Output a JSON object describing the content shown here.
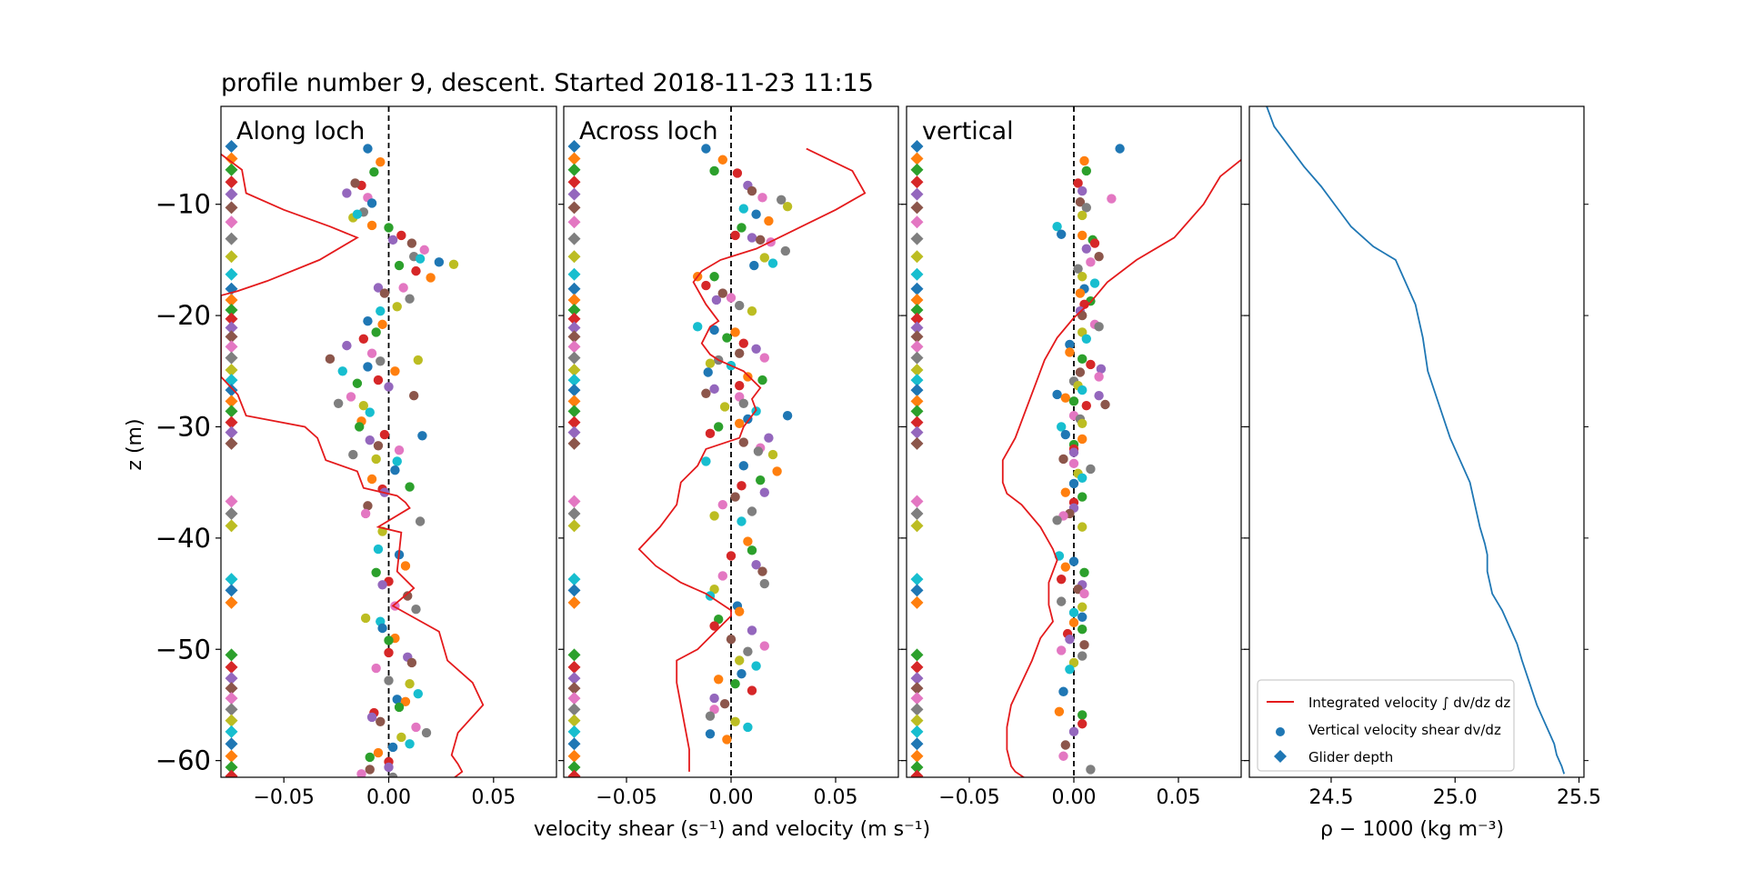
{
  "title": "profile number 9, descent. Started 2018-11-23 11:15",
  "ylabel": "z (m)",
  "shared_xlabel": "velocity shear (s⁻¹) and velocity (m s⁻¹)",
  "colors": {
    "integrated_line": "#e41a1c",
    "density_line": "#1f77b4",
    "zero_line": "#000000",
    "cycle": [
      "#1f77b4",
      "#ff7f0e",
      "#2ca02c",
      "#d62728",
      "#9467bd",
      "#8c564b",
      "#e377c2",
      "#7f7f7f",
      "#bcbd22",
      "#17becf"
    ]
  },
  "legend": {
    "placement": "lower-right",
    "items": [
      {
        "label": "Integrated velocity ∫ dv/dz dz",
        "marker": "line"
      },
      {
        "label": "Vertical velocity shear dv/dz",
        "marker": "circle"
      },
      {
        "label": "Glider depth",
        "marker": "diamond"
      }
    ]
  },
  "chart_data": [
    {
      "type": "scatter",
      "panel_label": "Along loch",
      "xlim": [
        -0.08,
        0.08
      ],
      "ylim": [
        -61.5,
        -1.2
      ],
      "xticks": [
        -0.05,
        0.0,
        0.05
      ],
      "xtick_labels": [
        "−0.05",
        "0.00",
        "0.05"
      ],
      "yticks": [
        -10,
        -20,
        -30,
        -40,
        -50,
        -60
      ],
      "ytick_labels": [
        "−10",
        "−20",
        "−30",
        "−40",
        "−50",
        "−60"
      ],
      "shear_x": [
        -0.01,
        -0.004,
        -0.007,
        -0.013,
        -0.02,
        -0.016,
        -0.01,
        -0.012,
        -0.017,
        -0.015,
        -0.008,
        -0.008,
        0.0,
        0.006,
        0.002,
        0.011,
        0.017,
        0.012,
        0.031,
        0.015,
        0.024,
        0.02,
        0.005,
        0.013,
        -0.005,
        -0.002,
        0.007,
        0.01,
        0.004,
        -0.004,
        -0.01,
        -0.003,
        -0.006,
        -0.012,
        -0.02,
        -0.028,
        -0.008,
        -0.004,
        0.014,
        -0.022,
        -0.01,
        0.003,
        -0.015,
        -0.005,
        0.0,
        0.012,
        -0.018,
        -0.024,
        -0.012,
        -0.009,
        0.016,
        -0.013,
        -0.014,
        -0.002,
        -0.009,
        -0.005,
        0.005,
        -0.017,
        -0.006,
        0.004,
        0.003,
        -0.008,
        0.01,
        -0.003,
        -0.002,
        -0.01,
        -0.011,
        0.015,
        -0.003,
        -0.005,
        0.005,
        0.008,
        -0.006,
        0.0,
        -0.003,
        0.009,
        0.003,
        0.013,
        -0.011,
        -0.004,
        -0.003,
        0.003,
        0.0,
        0.0,
        0.009,
        0.011,
        -0.006,
        0.0,
        0.01,
        0.014,
        0.004,
        0.008,
        0.005,
        -0.007,
        -0.008,
        -0.004,
        0.013,
        0.018,
        0.006,
        0.01,
        0.002,
        -0.005,
        -0.009,
        0.0,
        0.0,
        -0.009,
        -0.013,
        0.002
      ],
      "shear_z": [
        -5.0,
        -6.2,
        -7.1,
        -8.3,
        -9.0,
        -8.1,
        -9.4,
        -10.7,
        -11.2,
        -10.9,
        -9.9,
        -11.9,
        -12.1,
        -12.8,
        -13.2,
        -13.5,
        -14.1,
        -14.7,
        -15.4,
        -14.9,
        -15.2,
        -16.6,
        -15.5,
        -16.0,
        -17.5,
        -18.0,
        -17.5,
        -18.5,
        -19.2,
        -19.6,
        -20.5,
        -20.8,
        -21.5,
        -22.1,
        -22.7,
        -23.9,
        -23.4,
        -24.1,
        -24.0,
        -25.0,
        -24.6,
        -25.0,
        -26.1,
        -25.8,
        -26.4,
        -27.2,
        -27.3,
        -27.9,
        -28.1,
        -28.7,
        -30.8,
        -29.5,
        -30.0,
        -30.7,
        -31.2,
        -31.7,
        -32.1,
        -32.5,
        -32.9,
        -33.1,
        -33.9,
        -34.7,
        -35.4,
        -35.6,
        -35.9,
        -37.1,
        -37.8,
        -38.5,
        -39.4,
        -41.0,
        -41.5,
        -42.5,
        -43.1,
        -43.9,
        -44.2,
        -45.2,
        -46.1,
        -46.4,
        -47.2,
        -47.5,
        -48.1,
        -49.0,
        -49.2,
        -50.3,
        -50.7,
        -51.2,
        -51.7,
        -52.8,
        -53.1,
        -54.0,
        -54.5,
        -54.7,
        -55.2,
        -55.7,
        -56.1,
        -56.5,
        -57.0,
        -57.5,
        -57.9,
        -58.5,
        -58.8,
        -59.3,
        -59.7,
        -60.1,
        -60.6,
        -60.8,
        -61.2,
        -61.5
      ],
      "integrated_x": [
        -0.08,
        -0.07,
        -0.068,
        -0.05,
        -0.028,
        -0.015,
        -0.033,
        -0.058,
        -0.072,
        -0.08,
        -0.08,
        -0.072,
        -0.068,
        -0.04,
        -0.034,
        -0.03,
        -0.015,
        -0.012,
        0.004,
        0.008,
        0.01,
        -0.005,
        0.006,
        0.004,
        0.012,
        0.002,
        0.024,
        0.028,
        0.04,
        0.045,
        0.033,
        0.03,
        0.033,
        0.035,
        0.028,
        0.028,
        0.03
      ],
      "integrated_z": [
        -5.5,
        -6.9,
        -9.0,
        -10.5,
        -12.0,
        -13.0,
        -15.0,
        -16.9,
        -17.8,
        -18.2,
        -25.5,
        -27.1,
        -29.0,
        -30.0,
        -31.0,
        -33.0,
        -34.0,
        -35.5,
        -36.2,
        -36.8,
        -37.3,
        -39.0,
        -39.5,
        -43.0,
        -44.5,
        -46.1,
        -48.4,
        -51.0,
        -53.0,
        -55.0,
        -57.5,
        -59.5,
        -60.3,
        -61.0,
        -62.0,
        -63.0,
        -64.0
      ]
    },
    {
      "type": "scatter",
      "panel_label": "Across loch",
      "xlim": [
        -0.08,
        0.08
      ],
      "ylim": [
        -61.5,
        -1.2
      ],
      "xticks": [
        -0.05,
        0.0,
        0.05
      ],
      "xtick_labels": [
        "−0.05",
        "0.00",
        "0.05"
      ],
      "shear_x": [
        -0.012,
        -0.004,
        -0.008,
        0.003,
        0.008,
        0.01,
        0.015,
        0.024,
        0.027,
        0.006,
        0.012,
        0.018,
        0.005,
        0.002,
        0.01,
        0.014,
        0.019,
        0.026,
        0.016,
        0.02,
        0.011,
        -0.016,
        -0.008,
        -0.012,
        -0.007,
        -0.004,
        0.0,
        0.004,
        0.01,
        -0.016,
        -0.008,
        0.002,
        -0.002,
        0.006,
        0.012,
        0.004,
        0.016,
        -0.006,
        -0.01,
        0.0,
        -0.011,
        0.008,
        0.015,
        0.004,
        -0.008,
        -0.012,
        0.004,
        0.006,
        -0.003,
        0.012,
        0.008,
        0.004,
        -0.006,
        -0.01,
        0.018,
        0.006,
        0.014,
        0.013,
        0.02,
        -0.012,
        0.006,
        0.022,
        0.014,
        0.005,
        0.016,
        0.002,
        -0.004,
        0.01,
        -0.008,
        0.005,
        0.027,
        0.008,
        0.01,
        0.0,
        0.012,
        0.015,
        -0.004,
        0.016,
        -0.008,
        -0.01,
        0.003,
        0.004,
        -0.006,
        -0.008,
        0.01,
        0.0,
        0.016,
        0.008,
        0.004,
        0.012,
        0.005,
        -0.006,
        0.002,
        0.01,
        -0.008,
        -0.003,
        -0.008,
        -0.01,
        0.002,
        0.008,
        -0.01,
        -0.002
      ],
      "shear_z": [
        -5.0,
        -6.0,
        -7.0,
        -7.2,
        -8.3,
        -8.8,
        -9.4,
        -9.6,
        -10.2,
        -10.4,
        -10.9,
        -11.5,
        -12.1,
        -12.8,
        -13.0,
        -13.2,
        -13.4,
        -14.2,
        -14.8,
        -15.3,
        -15.5,
        -16.5,
        -16.5,
        -17.3,
        -18.6,
        -18.0,
        -18.4,
        -19.1,
        -19.6,
        -21.0,
        -21.3,
        -21.5,
        -22.0,
        -22.5,
        -23.0,
        -23.4,
        -23.8,
        -24.0,
        -24.3,
        -24.5,
        -25.1,
        -25.5,
        -25.8,
        -26.3,
        -26.6,
        -27.0,
        -27.3,
        -27.9,
        -28.2,
        -28.6,
        -29.3,
        -29.7,
        -30.0,
        -30.6,
        -31.0,
        -31.4,
        -31.9,
        -32.2,
        -32.5,
        -33.1,
        -33.5,
        -34.0,
        -34.8,
        -35.3,
        -35.9,
        -36.3,
        -37.0,
        -37.6,
        -38.0,
        -38.5,
        -29.0,
        -40.3,
        -41.1,
        -41.6,
        -42.4,
        -43.0,
        -43.4,
        -44.1,
        -44.6,
        -45.2,
        -46.1,
        -46.6,
        -47.3,
        -47.9,
        -48.3,
        -49.1,
        -49.7,
        -50.2,
        -51.0,
        -51.5,
        -52.2,
        -52.7,
        -53.1,
        -53.7,
        -54.4,
        -54.9,
        -55.4,
        -56.0,
        -56.5,
        -57.0,
        -57.6,
        -58.1
      ],
      "integrated_x": [
        0.036,
        0.058,
        0.064,
        0.05,
        0.012,
        -0.005,
        -0.014,
        -0.018,
        -0.012,
        -0.006,
        -0.01,
        -0.014,
        -0.01,
        -0.006,
        0.0,
        0.006,
        0.014,
        0.01,
        0.012,
        0.006,
        0.004,
        -0.012,
        -0.016,
        -0.024,
        -0.026,
        -0.034,
        -0.044,
        -0.036,
        -0.024,
        -0.012,
        0.0,
        0.0,
        -0.008,
        -0.016,
        -0.026,
        -0.026,
        -0.024,
        -0.022,
        -0.02,
        -0.02
      ],
      "integrated_z": [
        -5.0,
        -7.0,
        -9.0,
        -10.5,
        -14.0,
        -15.0,
        -16.0,
        -17.0,
        -19.0,
        -20.5,
        -21.0,
        -22.5,
        -23.5,
        -24.0,
        -24.5,
        -25.0,
        -26.5,
        -27.5,
        -28.5,
        -30.0,
        -31.0,
        -32.0,
        -33.5,
        -35.0,
        -37.0,
        -39.0,
        -41.0,
        -42.5,
        -44.0,
        -45.0,
        -46.5,
        -47.0,
        -48.5,
        -50.0,
        -51.0,
        -53.0,
        -55.0,
        -57.0,
        -59.0,
        -61.0
      ]
    },
    {
      "type": "scatter",
      "panel_label": "vertical",
      "xlim": [
        -0.08,
        0.08
      ],
      "ylim": [
        -61.5,
        -1.2
      ],
      "xticks": [
        -0.05,
        0.0,
        0.05
      ],
      "xtick_labels": [
        "−0.05",
        "0.00",
        "0.05"
      ],
      "shear_x": [
        0.022,
        0.005,
        0.006,
        0.002,
        0.004,
        0.003,
        0.018,
        0.006,
        0.004,
        -0.008,
        -0.006,
        0.004,
        0.009,
        0.01,
        0.006,
        0.012,
        0.008,
        0.002,
        0.004,
        0.01,
        0.005,
        0.003,
        0.008,
        0.005,
        0.003,
        0.004,
        0.01,
        0.012,
        0.004,
        0.006,
        -0.002,
        -0.002,
        0.004,
        0.008,
        0.013,
        0.003,
        0.012,
        0.0,
        0.002,
        0.004,
        -0.008,
        -0.004,
        0.0,
        0.006,
        0.012,
        0.015,
        0.0,
        0.003,
        0.004,
        -0.006,
        -0.004,
        0.004,
        0.0,
        0.0,
        0.0,
        -0.005,
        0.0,
        0.008,
        0.002,
        0.004,
        0.0,
        -0.004,
        0.004,
        0.0,
        0.0,
        -0.002,
        -0.005,
        -0.008,
        0.004,
        -0.007,
        0.0,
        -0.004,
        0.005,
        -0.006,
        0.004,
        0.002,
        0.005,
        -0.006,
        0.004,
        0.0,
        0.004,
        0.0,
        0.004,
        -0.003,
        -0.002,
        0.005,
        -0.006,
        0.004,
        0.0,
        -0.002,
        -0.005,
        -0.007,
        0.004,
        0.004,
        0.0,
        -0.004,
        -0.005,
        0.008
      ],
      "shear_z": [
        -5.0,
        -6.1,
        -7.0,
        -8.1,
        -8.8,
        -9.8,
        -9.5,
        -10.3,
        -11.0,
        -12.0,
        -12.7,
        -12.8,
        -13.2,
        -13.5,
        -14.0,
        -14.7,
        -15.2,
        -15.8,
        -16.5,
        -17.1,
        -17.6,
        -18.0,
        -18.7,
        -19.0,
        -19.6,
        -20.0,
        -20.8,
        -21.0,
        -21.5,
        -22.1,
        -22.6,
        -23.3,
        -23.9,
        -24.4,
        -24.8,
        -25.1,
        -25.5,
        -25.9,
        -26.3,
        -26.7,
        -27.1,
        -27.4,
        -27.7,
        -28.1,
        -27.2,
        -28.0,
        -29.0,
        -29.3,
        -29.7,
        -30.0,
        -30.7,
        -31.1,
        -31.6,
        -32.0,
        -32.3,
        -32.9,
        -33.3,
        -33.8,
        -34.2,
        -34.6,
        -35.1,
        -35.9,
        -36.3,
        -36.8,
        -37.3,
        -37.8,
        -38.0,
        -38.4,
        -39.0,
        -41.6,
        -42.1,
        -42.6,
        -43.1,
        -43.7,
        -44.2,
        -44.6,
        -45.0,
        -45.7,
        -46.2,
        -46.7,
        -47.1,
        -47.6,
        -48.2,
        -48.6,
        -49.1,
        -49.6,
        -50.1,
        -50.6,
        -51.2,
        -51.8,
        -53.8,
        -55.6,
        -55.9,
        -56.7,
        -57.4,
        -58.6,
        -59.6,
        -60.8
      ],
      "integrated_x": [
        0.09,
        0.08,
        0.07,
        0.062,
        0.048,
        0.03,
        0.016,
        0.008,
        0.0,
        -0.008,
        -0.014,
        -0.018,
        -0.024,
        -0.028,
        -0.034,
        -0.034,
        -0.032,
        -0.025,
        -0.016,
        -0.01,
        -0.008,
        -0.012,
        -0.012,
        -0.01,
        -0.016,
        -0.02,
        -0.025,
        -0.03,
        -0.032,
        -0.032,
        -0.03,
        -0.028,
        -0.02,
        -0.018
      ],
      "integrated_z": [
        -5.0,
        -6.0,
        -7.5,
        -10.0,
        -13.0,
        -15.0,
        -17.0,
        -18.8,
        -20.2,
        -22.0,
        -24.0,
        -26.0,
        -29.0,
        -31.0,
        -33.0,
        -35.0,
        -36.0,
        -37.0,
        -39.0,
        -41.0,
        -42.0,
        -44.0,
        -46.0,
        -47.5,
        -49.0,
        -51.0,
        -53.0,
        -55.0,
        -57.0,
        -59.0,
        -60.5,
        -61.0,
        -62.0,
        -63.0
      ]
    },
    {
      "type": "line",
      "xlabel": "ρ − 1000 (kg m⁻³)",
      "xlim": [
        24.17,
        25.52
      ],
      "ylim": [
        -61.5,
        -1.2
      ],
      "xticks": [
        24.5,
        25.0,
        25.5
      ],
      "xtick_labels": [
        "24.5",
        "25.0",
        "25.5"
      ],
      "density_x": [
        24.24,
        24.27,
        24.33,
        24.39,
        24.46,
        24.52,
        24.58,
        24.67,
        24.76,
        24.8,
        24.84,
        24.87,
        24.89,
        24.92,
        24.95,
        24.98,
        25.02,
        25.06,
        25.08,
        25.1,
        25.12,
        25.13,
        25.13,
        25.14,
        25.15,
        25.19,
        25.22,
        25.25,
        25.27,
        25.3,
        25.33,
        25.36,
        25.38,
        25.4,
        25.41,
        25.43,
        25.44
      ],
      "density_z": [
        -1.2,
        -3.0,
        -4.8,
        -6.6,
        -8.4,
        -10.2,
        -12.0,
        -13.8,
        -15.0,
        -17.0,
        -19.0,
        -22.0,
        -25.0,
        -27.0,
        -29.0,
        -31.0,
        -33.0,
        -35.0,
        -37.0,
        -39.0,
        -40.5,
        -41.5,
        -43.0,
        -44.0,
        -45.0,
        -46.5,
        -48.0,
        -49.5,
        -51.0,
        -53.0,
        -55.0,
        -56.5,
        -57.5,
        -58.5,
        -59.5,
        -60.5,
        -61.2
      ]
    }
  ],
  "glider_depth_markers": {
    "x": -0.075,
    "z": [
      -4.8,
      -5.9,
      -6.9,
      -8.0,
      -9.1,
      -10.3,
      -11.6,
      -13.1,
      -14.7,
      -16.3,
      -17.6,
      -18.6,
      -19.5,
      -20.3,
      -21.1,
      -21.9,
      -22.8,
      -23.8,
      -24.9,
      -25.8,
      -26.7,
      -27.7,
      -28.6,
      -29.6,
      -30.5,
      -31.5,
      -36.7,
      -37.8,
      -38.9,
      -43.7,
      -44.7,
      -45.8,
      -50.5,
      -51.6,
      -52.6,
      -53.5,
      -54.4,
      -55.4,
      -56.4,
      -57.4,
      -58.5,
      -59.6,
      -60.6,
      -61.4
    ]
  }
}
